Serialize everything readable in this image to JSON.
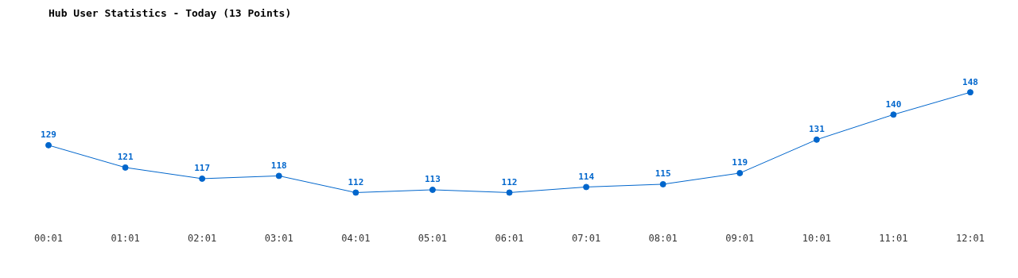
{
  "chart_data": {
    "type": "line",
    "title": "Hub User Statistics - Today (13 Points)",
    "categories": [
      "00:01",
      "01:01",
      "02:01",
      "03:01",
      "04:01",
      "05:01",
      "06:01",
      "07:01",
      "08:01",
      "09:01",
      "10:01",
      "11:01",
      "12:01"
    ],
    "series": [
      {
        "color": "#0066cc",
        "values": [
          129,
          121,
          117,
          118,
          112,
          113,
          112,
          114,
          115,
          119,
          131,
          140,
          148
        ]
      }
    ],
    "data_labels": true,
    "marker": "circle",
    "line_style": "solid"
  }
}
